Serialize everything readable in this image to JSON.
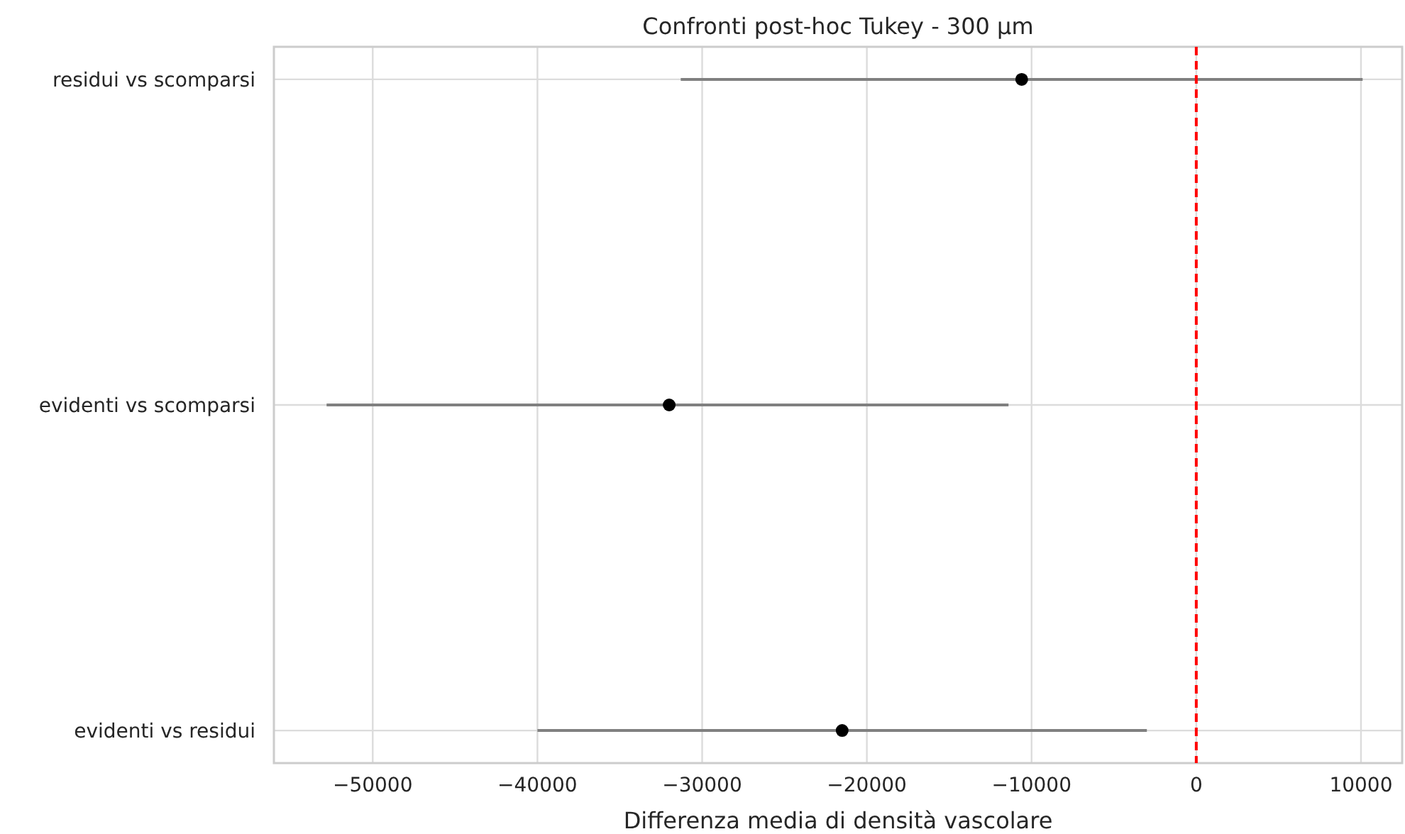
{
  "chart_data": {
    "type": "scatter",
    "orientation": "horizontal",
    "title": "Confronti post-hoc Tukey - 300 µm",
    "xlabel": "Differenza media di densità vascolare",
    "categories": [
      "residui vs scomparsi",
      "evidenti vs scomparsi",
      "evidenti vs residui"
    ],
    "series": [
      {
        "color": "#000000",
        "values": [
          -10600,
          -32000,
          -21500
        ],
        "errors": [
          [
            -31300,
            10100
          ],
          [
            -52800,
            -11400
          ],
          [
            -40000,
            -3000
          ]
        ]
      }
    ],
    "xlim": [
      -56000,
      12500
    ],
    "xticks": [
      {
        "value": -50000,
        "label": "−50000"
      },
      {
        "value": -40000,
        "label": "−40000"
      },
      {
        "value": -30000,
        "label": "−30000"
      },
      {
        "value": -20000,
        "label": "−20000"
      },
      {
        "value": -10000,
        "label": "−10000"
      },
      0,
      10000
    ],
    "ref_lines": [
      {
        "axis": "x",
        "value": 0,
        "color": "#ff0000",
        "line_style": "dashed"
      }
    ],
    "grid": true,
    "marker": "circle"
  }
}
